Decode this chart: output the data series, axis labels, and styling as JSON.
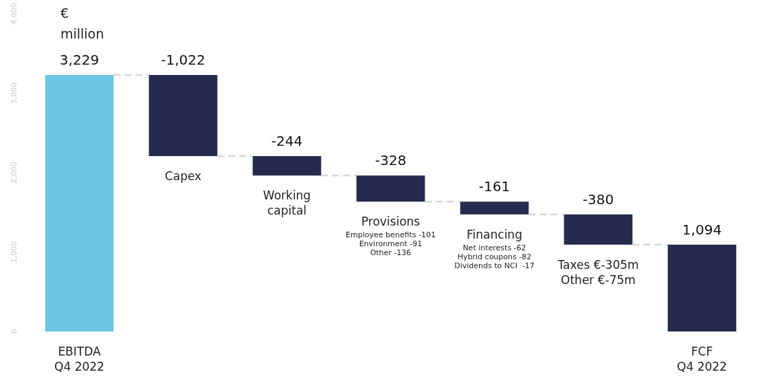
{
  "chart_data": {
    "type": "bar",
    "ylabel": "€ million",
    "categories": [
      "EBITDA\nQ4 2022",
      "Capex",
      "Working\ncapital",
      "Provisions",
      "Financing",
      "Taxes €-305m\nOther €-75m",
      "FCF\nQ4 2022"
    ],
    "values": [
      3229,
      -1022,
      -244,
      -328,
      -161,
      -380,
      1094
    ],
    "base": [
      0,
      3229,
      2207,
      1963,
      1635,
      1474,
      0
    ],
    "colors": [
      "#6ac6e2",
      "#262a4e",
      "#262a4e",
      "#262a4e",
      "#262a4e",
      "#262a4e",
      "#262a4e"
    ],
    "value_labels": [
      "3,229",
      "-1,022",
      "-244",
      "-328",
      "-161",
      "-380",
      "1,094"
    ],
    "ylim": [
      0,
      4000
    ],
    "yticks": [
      {
        "value": 0,
        "label": "0"
      },
      {
        "value": 1000,
        "label": "1,000"
      },
      {
        "value": 2000,
        "label": "2,000"
      },
      {
        "value": 3000,
        "label": "3,000"
      },
      {
        "value": 4000,
        "label": "4,000"
      }
    ],
    "annotations": [
      "Employee benefits -101\nEnvironment -91\nOther -136",
      "Net interests -62\nHybrid coupons -82\nDividends to NCI  -17"
    ]
  }
}
